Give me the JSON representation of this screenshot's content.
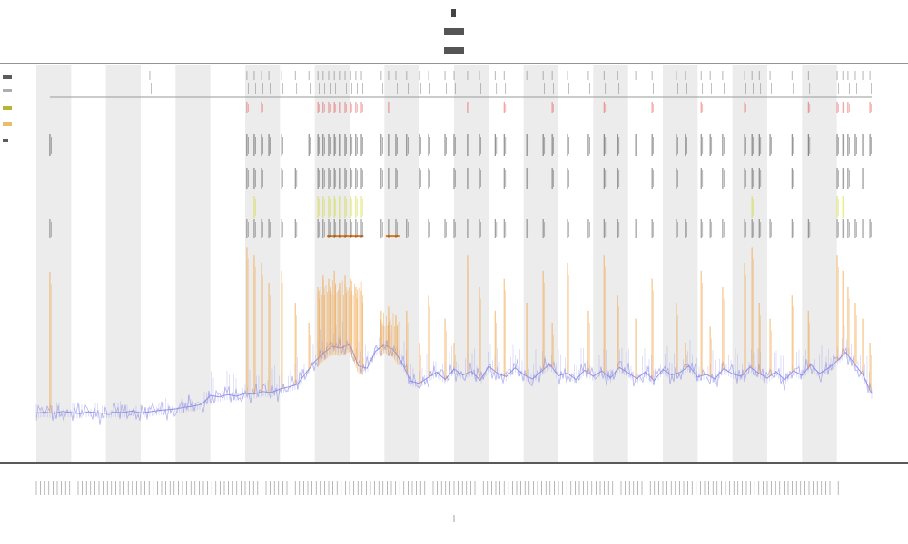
{
  "chart_data": {
    "type": "line",
    "xlim": [
      0,
      24
    ],
    "ylim": [
      0,
      100
    ],
    "grid": false,
    "shaded_bands": [
      [
        0,
        1
      ],
      [
        2,
        3
      ],
      [
        4,
        5
      ],
      [
        6,
        7
      ],
      [
        8,
        9
      ],
      [
        10,
        11
      ],
      [
        12,
        13
      ],
      [
        14,
        15
      ],
      [
        16,
        17
      ],
      [
        18,
        19
      ],
      [
        20,
        21
      ],
      [
        22,
        23
      ]
    ],
    "band_color": "#ececec",
    "series": [
      {
        "color": "#8a8ae6",
        "x": [
          0,
          0.25,
          0.5,
          0.75,
          1,
          1.25,
          1.5,
          1.75,
          2,
          2.25,
          2.5,
          2.75,
          3,
          3.25,
          3.5,
          3.75,
          4,
          4.25,
          4.5,
          4.75,
          5,
          5.25,
          5.5,
          5.75,
          6,
          6.25,
          6.5,
          6.75,
          7,
          7.25,
          7.5,
          7.75,
          8,
          8.25,
          8.5,
          8.75,
          9,
          9.25,
          9.5,
          9.75,
          10,
          10.25,
          10.5,
          10.75,
          11,
          11.25,
          11.5,
          11.75,
          12,
          12.25,
          12.5,
          12.75,
          13,
          13.25,
          13.5,
          13.75,
          14,
          14.25,
          14.5,
          14.75,
          15,
          15.25,
          15.5,
          15.75,
          16,
          16.25,
          16.5,
          16.75,
          17,
          17.25,
          17.5,
          17.75,
          18,
          18.25,
          18.5,
          18.75,
          19,
          19.25,
          19.5,
          19.75,
          20,
          20.25,
          20.5,
          20.75,
          21,
          21.25,
          21.5,
          21.75,
          22,
          22.25,
          22.5,
          22.75,
          23,
          23.25,
          23.5,
          23.75,
          24
        ],
        "values": [
          12.4,
          12.6,
          12.3,
          12.8,
          12.5,
          12.2,
          12.7,
          12.4,
          12.3,
          12.6,
          12.5,
          12.9,
          12.4,
          12.7,
          13.0,
          13.2,
          13.4,
          13.8,
          14.1,
          14.6,
          16.8,
          16.4,
          17.0,
          16.6,
          17.3,
          17.1,
          17.8,
          17.5,
          18.4,
          18.9,
          19.6,
          22.5,
          25.3,
          27.4,
          29.1,
          28.6,
          29.8,
          24.2,
          23.6,
          27.9,
          29.5,
          28.3,
          25.1,
          20.4,
          19.8,
          21.3,
          22.6,
          20.8,
          23.4,
          21.9,
          22.8,
          20.6,
          24.1,
          22.3,
          21.5,
          23.7,
          22.0,
          20.9,
          22.8,
          24.6,
          21.7,
          22.4,
          20.8,
          23.1,
          21.6,
          22.9,
          21.2,
          23.8,
          22.5,
          21.0,
          22.7,
          20.5,
          23.3,
          21.9,
          22.6,
          24.2,
          21.4,
          22.1,
          20.9,
          23.5,
          22.2,
          21.6,
          23.9,
          22.4,
          21.1,
          22.8,
          20.7,
          23.0,
          21.8,
          24.5,
          22.3,
          23.6,
          25.4,
          27.6,
          24.8,
          21.9,
          17.2
        ]
      }
    ],
    "event_rows": [
      {
        "color": "#6a6a6a"
      },
      {
        "color": "#e23b3b"
      },
      {
        "color": "#1e1e1e"
      },
      {
        "color": "#2a2a2a"
      },
      {
        "color": "#c9d200"
      },
      {
        "color": "#3a3a3a"
      }
    ],
    "orange_color": "#f0a040",
    "events": [
      [
        0.39,
        47.7,
        [
          2,
          5
        ]
      ],
      [
        3.26,
        0,
        [
          0
        ]
      ],
      [
        6.05,
        54,
        [
          0,
          1,
          2,
          3,
          5
        ]
      ],
      [
        6.26,
        52,
        [
          0,
          2,
          3,
          4,
          5
        ]
      ],
      [
        6.47,
        50,
        [
          0,
          1,
          2,
          3,
          5
        ]
      ],
      [
        6.68,
        45,
        [
          0,
          2,
          5
        ]
      ],
      [
        7.04,
        48,
        [
          0,
          2,
          3,
          5
        ]
      ],
      [
        7.44,
        40,
        [
          0,
          3,
          5
        ]
      ],
      [
        7.83,
        35,
        [
          0,
          2
        ]
      ],
      [
        8.09,
        44,
        [
          0,
          1,
          2,
          3,
          4,
          5
        ]
      ],
      [
        8.24,
        47,
        [
          0,
          1,
          2,
          3,
          4,
          5
        ]
      ],
      [
        8.4,
        46,
        [
          0,
          1,
          2,
          3,
          4,
          5
        ]
      ],
      [
        8.56,
        48,
        [
          0,
          1,
          2,
          3,
          4,
          5
        ]
      ],
      [
        8.71,
        45,
        [
          0,
          1,
          2,
          3,
          4,
          5
        ]
      ],
      [
        8.87,
        47,
        [
          0,
          1,
          2,
          3,
          4,
          5
        ]
      ],
      [
        9.03,
        46,
        [
          0,
          1,
          2,
          3,
          4,
          5
        ]
      ],
      [
        9.18,
        44,
        [
          0,
          1,
          2,
          3,
          4,
          5
        ]
      ],
      [
        9.34,
        43,
        [
          0,
          1,
          2,
          3,
          4,
          5
        ]
      ],
      [
        9.91,
        38,
        [
          0,
          2,
          3,
          5
        ]
      ],
      [
        10.12,
        39,
        [
          0,
          1,
          2,
          3,
          5
        ]
      ],
      [
        10.33,
        37,
        [
          0,
          2,
          3,
          5
        ]
      ],
      [
        10.64,
        38,
        [
          0,
          2,
          5
        ]
      ],
      [
        11.01,
        30,
        [
          0,
          2,
          3
        ]
      ],
      [
        11.27,
        42,
        [
          0,
          2,
          3,
          5
        ]
      ],
      [
        11.74,
        36,
        [
          0,
          2,
          5
        ]
      ],
      [
        12.0,
        30,
        [
          0,
          2,
          3,
          5
        ]
      ],
      [
        12.39,
        52,
        [
          0,
          1,
          2,
          3,
          5
        ]
      ],
      [
        12.73,
        44,
        [
          0,
          2,
          3,
          5
        ]
      ],
      [
        13.18,
        38,
        [
          0,
          2,
          5
        ]
      ],
      [
        13.44,
        46,
        [
          0,
          1,
          2,
          3,
          5
        ]
      ],
      [
        14.09,
        40,
        [
          0,
          2,
          3,
          5
        ]
      ],
      [
        14.56,
        48,
        [
          0,
          2,
          5
        ]
      ],
      [
        14.82,
        35,
        [
          0,
          1,
          2,
          3
        ]
      ],
      [
        15.26,
        50,
        [
          0,
          2,
          3,
          5
        ]
      ],
      [
        15.86,
        38,
        [
          0,
          2,
          5
        ]
      ],
      [
        16.31,
        52,
        [
          0,
          1,
          2,
          3,
          5
        ]
      ],
      [
        16.7,
        42,
        [
          0,
          2,
          3,
          5
        ]
      ],
      [
        17.22,
        36,
        [
          0,
          2,
          5
        ]
      ],
      [
        17.69,
        46,
        [
          0,
          1,
          2,
          3,
          5
        ]
      ],
      [
        18.39,
        40,
        [
          0,
          2,
          3,
          5
        ]
      ],
      [
        18.65,
        30,
        [
          0,
          2,
          5
        ]
      ],
      [
        19.1,
        48,
        [
          0,
          1,
          2,
          3,
          5
        ]
      ],
      [
        19.36,
        34,
        [
          0,
          2,
          5
        ]
      ],
      [
        19.72,
        44,
        [
          0,
          2,
          3,
          5
        ]
      ],
      [
        20.35,
        50,
        [
          0,
          1,
          2,
          3,
          5
        ]
      ],
      [
        20.56,
        54,
        [
          0,
          2,
          3,
          4,
          5
        ]
      ],
      [
        20.77,
        40,
        [
          0,
          2,
          3,
          5
        ]
      ],
      [
        21.08,
        36,
        [
          0,
          2,
          5
        ]
      ],
      [
        21.71,
        42,
        [
          0,
          2,
          3,
          5
        ]
      ],
      [
        22.18,
        38,
        [
          0,
          1,
          2,
          5
        ]
      ],
      [
        23.01,
        52,
        [
          0,
          1,
          2,
          3,
          4,
          5
        ]
      ],
      [
        23.17,
        48,
        [
          0,
          1,
          2,
          3,
          4,
          5
        ]
      ],
      [
        23.32,
        44,
        [
          0,
          1,
          2,
          3,
          5
        ]
      ],
      [
        23.53,
        40,
        [
          0,
          2,
          5
        ]
      ],
      [
        23.74,
        36,
        [
          0,
          2,
          3,
          5
        ]
      ],
      [
        23.95,
        30,
        [
          0,
          1,
          2,
          5
        ]
      ]
    ],
    "orange_fills": [
      [
        8.09,
        9.4,
        46
      ],
      [
        9.9,
        10.42,
        38
      ]
    ],
    "orange_segments": [
      [
        8.35,
        9.4,
        56.8
      ],
      [
        10.04,
        10.43,
        56.8
      ]
    ],
    "reference_line": {
      "value": 91.6,
      "from": 0.39,
      "to": 24,
      "color": "#9a9a9a"
    }
  },
  "legend_markers": [
    "#333333",
    "#9a9a9a",
    "#a8a000",
    "#e0b040",
    "#333333"
  ]
}
